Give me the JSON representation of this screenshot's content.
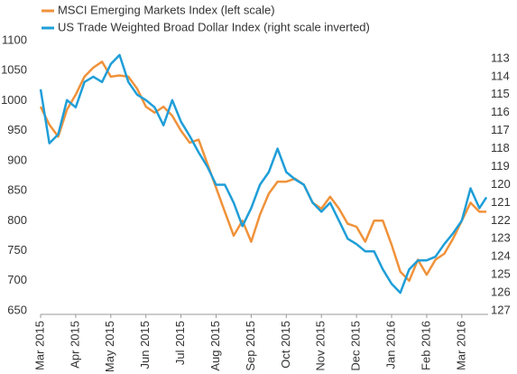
{
  "chart_data": {
    "type": "line",
    "x": [
      0,
      0.25,
      0.5,
      0.75,
      1,
      1.25,
      1.5,
      1.75,
      2,
      2.25,
      2.5,
      2.75,
      3,
      3.25,
      3.5,
      3.75,
      4,
      4.25,
      4.5,
      4.75,
      5,
      5.25,
      5.5,
      5.75,
      6,
      6.25,
      6.5,
      6.75,
      7,
      7.25,
      7.5,
      7.75,
      8,
      8.25,
      8.5,
      8.75,
      9,
      9.25,
      9.5,
      9.75,
      10,
      10.25,
      10.5,
      10.75,
      11,
      11.25,
      11.5,
      11.75,
      12,
      12.25,
      12.5,
      12.7
    ],
    "xlim": [
      0,
      12.75
    ],
    "xticks": [
      {
        "value": 0,
        "label": "Mar 2015"
      },
      {
        "value": 1,
        "label": "Apr 2015"
      },
      {
        "value": 2,
        "label": "May 2015"
      },
      {
        "value": 3,
        "label": "Jun 2015"
      },
      {
        "value": 4,
        "label": "Jul 2015"
      },
      {
        "value": 5,
        "label": "Aug 2015"
      },
      {
        "value": 6,
        "label": "Sep 2015"
      },
      {
        "value": 7,
        "label": "Oct 2015"
      },
      {
        "value": 8,
        "label": "Nov 2015"
      },
      {
        "value": 9,
        "label": "Dec 2015"
      },
      {
        "value": 10,
        "label": "Jan 2016"
      },
      {
        "value": 11,
        "label": "Feb 2016"
      },
      {
        "value": 12,
        "label": "Mar 2016"
      }
    ],
    "ylim": [
      650,
      1100
    ],
    "yticks": [
      650,
      700,
      750,
      800,
      850,
      900,
      950,
      1000,
      1050,
      1100
    ],
    "y2lim": [
      127,
      112
    ],
    "y2ticks": [
      113,
      114,
      115,
      116,
      117,
      118,
      119,
      120,
      121,
      122,
      123,
      124,
      125,
      126,
      127
    ],
    "grid": false,
    "legend": "top-left",
    "series": [
      {
        "name": "MSCI Emerging Markets Index (left scale)",
        "color": "#f0923a",
        "values": [
          990,
          960,
          940,
          985,
          1010,
          1040,
          1055,
          1065,
          1040,
          1042,
          1040,
          1020,
          990,
          980,
          990,
          975,
          950,
          930,
          935,
          895,
          855,
          815,
          775,
          800,
          765,
          810,
          845,
          865,
          865,
          870,
          860,
          830,
          820,
          840,
          820,
          795,
          790,
          765,
          800,
          800,
          760,
          715,
          700,
          735,
          710,
          735,
          745,
          770,
          800,
          830,
          815,
          815
        ]
      },
      {
        "name": "US Trade Weighted Broad Dollar Index (right scale inverted)",
        "color": "#1f9ed8",
        "axis": "y2",
        "values": [
          114.7,
          117.7,
          117.2,
          115.3,
          115.7,
          114.3,
          114.0,
          114.3,
          113.3,
          112.8,
          114.3,
          115.0,
          115.3,
          115.7,
          116.7,
          115.3,
          116.5,
          117.3,
          118.2,
          119.0,
          120.0,
          120.0,
          121.0,
          122.3,
          121.3,
          120.0,
          119.3,
          118.0,
          119.3,
          119.7,
          120.0,
          121.0,
          121.5,
          121.0,
          122.0,
          123.0,
          123.3,
          123.7,
          123.7,
          124.7,
          125.5,
          126.0,
          124.7,
          124.2,
          124.2,
          124.0,
          123.3,
          122.7,
          122.0,
          120.2,
          121.3,
          120.7
        ]
      }
    ]
  }
}
